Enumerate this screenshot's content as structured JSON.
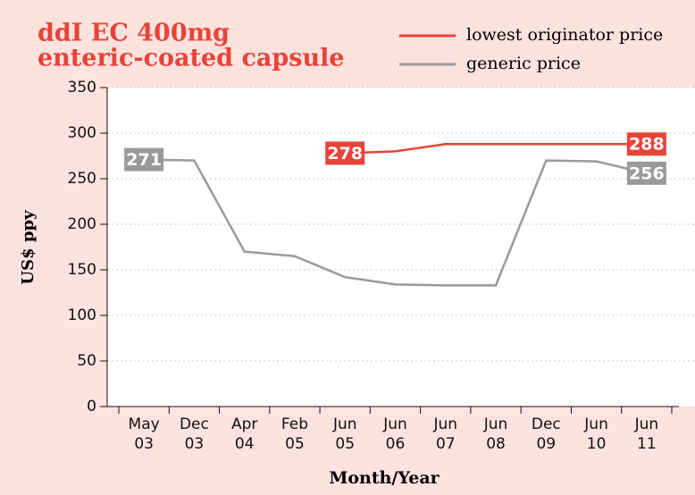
{
  "chart_data": {
    "type": "line",
    "title": [
      "ddI EC 400mg",
      "enteric-coated capsule"
    ],
    "x_label": "Month/Year",
    "y_label": "US$ ppy",
    "categories": [
      [
        "May",
        "03"
      ],
      [
        "Dec",
        "03"
      ],
      [
        "Apr",
        "04"
      ],
      [
        "Feb",
        "05"
      ],
      [
        "Jun",
        "05"
      ],
      [
        "Jun",
        "06"
      ],
      [
        "Jun",
        "07"
      ],
      [
        "Jun",
        "08"
      ],
      [
        "Dec",
        "09"
      ],
      [
        "Jun",
        "10"
      ],
      [
        "Jun",
        "11"
      ]
    ],
    "series": [
      {
        "name": "lowest originator price",
        "color": "#e8433a",
        "values": [
          null,
          null,
          null,
          null,
          278,
          280,
          288,
          288,
          288,
          288,
          288
        ],
        "value_labels": [
          null,
          null,
          null,
          null,
          "278",
          null,
          null,
          null,
          null,
          null,
          "288"
        ]
      },
      {
        "name": "generic price",
        "color": "#9a9a9a",
        "values": [
          271,
          270,
          170,
          165,
          142,
          134,
          133,
          133,
          270,
          269,
          256
        ],
        "value_labels": [
          "271",
          null,
          null,
          null,
          null,
          null,
          null,
          null,
          null,
          null,
          "256"
        ]
      }
    ],
    "ylim": [
      0,
      350
    ],
    "yticks": [
      0,
      50,
      100,
      150,
      200,
      250,
      300,
      350
    ],
    "grid": true,
    "legend": "top-right"
  }
}
